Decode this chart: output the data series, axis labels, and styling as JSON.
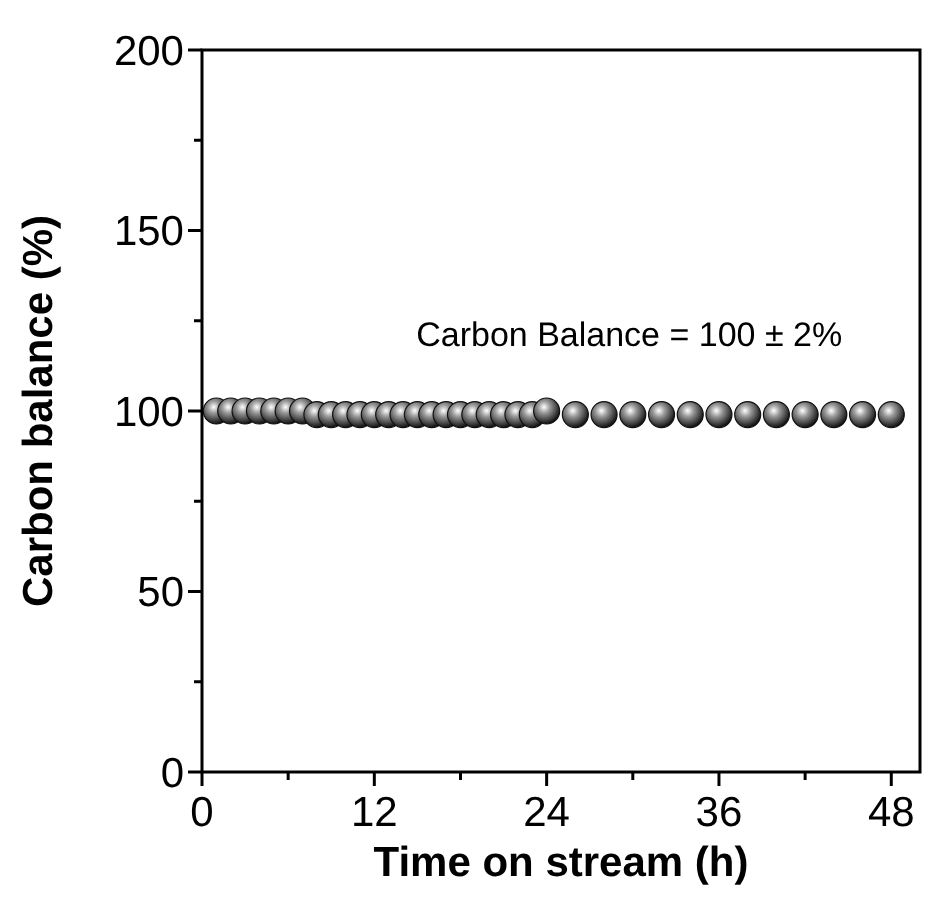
{
  "chart_data": {
    "type": "scatter",
    "xlabel": "Time on stream (h)",
    "ylabel": "Carbon balance (%)",
    "annotations": [
      "Carbon Balance = 100 ± 2%"
    ],
    "xlim": [
      0,
      50
    ],
    "xticks": [
      0,
      {
        "value": 6,
        "label": null
      },
      12,
      {
        "value": 18,
        "label": null
      },
      24,
      {
        "value": 30,
        "label": null
      },
      36,
      {
        "value": 42,
        "label": null
      },
      48
    ],
    "ylim": [
      0,
      200
    ],
    "yticks": [
      0,
      {
        "value": 25,
        "label": null
      },
      50,
      {
        "value": 75,
        "label": null
      },
      100,
      {
        "value": 125,
        "label": null
      },
      150,
      {
        "value": 175,
        "label": null
      },
      200
    ],
    "grid": false,
    "marker": "circle",
    "series": [
      {
        "color": "#111111",
        "x": [
          1,
          2,
          3,
          4,
          5,
          6,
          7,
          8,
          9,
          10,
          11,
          12,
          13,
          14,
          15,
          16,
          17,
          18,
          19,
          20,
          21,
          22,
          23,
          24,
          26,
          28,
          30,
          32,
          34,
          36,
          38,
          40,
          42,
          44,
          46,
          48
        ],
        "values": [
          100,
          100,
          100,
          100,
          100,
          100,
          100,
          99,
          99,
          99,
          99,
          99,
          99,
          99,
          99,
          99,
          99,
          99,
          99,
          99,
          99,
          99,
          99,
          100,
          99,
          99,
          99,
          99,
          99,
          99,
          99,
          99,
          99,
          99,
          99,
          99
        ]
      }
    ]
  }
}
